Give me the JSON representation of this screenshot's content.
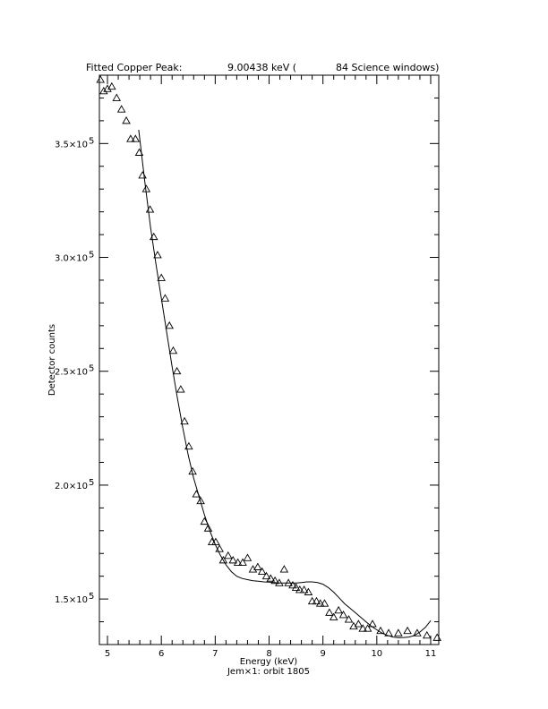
{
  "title": {
    "prefix": "Fitted Copper Peak:",
    "energy": "9.00438 keV (",
    "windows": "84 Science windows)"
  },
  "footer": "Jem×1: orbit 1805",
  "chart_data": {
    "type": "scatter",
    "title": "Fitted Copper Peak:      9.00438 keV (      84 Science windows)",
    "xlabel": "Energy (keV)",
    "ylabel": "Detector counts",
    "xlim": [
      4.85,
      11.15
    ],
    "ylim": [
      130000,
      380000
    ],
    "xticks": [
      5,
      6,
      7,
      8,
      9,
      10,
      11
    ],
    "xtick_labels": [
      "5",
      "6",
      "7",
      "8",
      "9",
      "10",
      "11"
    ],
    "yticks": [
      150000,
      200000,
      250000,
      300000,
      350000
    ],
    "ytick_mantissas": [
      "1.5×10",
      "2.0×10",
      "2.5×10",
      "3.0×10",
      "3.5×10"
    ],
    "ytick_exponent": "5",
    "grid": false,
    "series": [
      {
        "marker": "triangle",
        "x": [
          4.87,
          4.93,
          5.0,
          5.08,
          5.17,
          5.26,
          5.35,
          5.43,
          5.52,
          5.59,
          5.65,
          5.72,
          5.79,
          5.86,
          5.93,
          6.0,
          6.07,
          6.15,
          6.22,
          6.29,
          6.36,
          6.43,
          6.51,
          6.58,
          6.65,
          6.73,
          6.8,
          6.87,
          6.94,
          7.01,
          7.08,
          7.15,
          7.24,
          7.33,
          7.42,
          7.51,
          7.6,
          7.7,
          7.79,
          7.87,
          7.95,
          8.03,
          8.11,
          8.19,
          8.28,
          8.36,
          8.44,
          8.5,
          8.57,
          8.65,
          8.73,
          8.8,
          8.88,
          8.95,
          9.03,
          9.12,
          9.2,
          9.29,
          9.38,
          9.48,
          9.57,
          9.66,
          9.74,
          9.83,
          9.92,
          10.07,
          10.22,
          10.4,
          10.57,
          10.75,
          10.93,
          11.12
        ],
        "y": [
          378000,
          373000,
          374000,
          375000,
          370000,
          365000,
          360000,
          352000,
          352000,
          346000,
          336000,
          330000,
          321000,
          309000,
          301000,
          291000,
          282000,
          270000,
          259000,
          250000,
          242000,
          228000,
          217000,
          206000,
          196000,
          193000,
          184000,
          181000,
          175000,
          175000,
          172000,
          167000,
          169000,
          167000,
          166000,
          166000,
          168000,
          163000,
          164000,
          162000,
          160000,
          159000,
          158000,
          157000,
          163000,
          157000,
          156000,
          155000,
          154000,
          154000,
          153000,
          149000,
          149000,
          148000,
          148000,
          144000,
          142000,
          145000,
          143000,
          141000,
          138000,
          139000,
          137000,
          137000,
          139000,
          136000,
          135000,
          135000,
          136000,
          135000,
          134000,
          133000
        ]
      },
      {
        "type": "line",
        "x": [
          5.58,
          5.7,
          5.8,
          5.9,
          6.0,
          6.1,
          6.2,
          6.3,
          6.4,
          6.5,
          6.6,
          6.7,
          6.8,
          6.9,
          7.0,
          7.1,
          7.2,
          7.3,
          7.4,
          7.5,
          7.6,
          7.7,
          7.8,
          7.9,
          8.0,
          8.1,
          8.2,
          8.3,
          8.4,
          8.5,
          8.6,
          8.7,
          8.8,
          8.9,
          9.0,
          9.1,
          9.2,
          9.3,
          9.4,
          9.5,
          9.6,
          9.7,
          9.8,
          9.9,
          10.0,
          10.1,
          10.2,
          10.3,
          10.4,
          10.5,
          10.6,
          10.7,
          10.8,
          10.9,
          11.0
        ],
        "y": [
          356000,
          332000,
          313000,
          297000,
          282000,
          267000,
          252000,
          238000,
          225000,
          213000,
          203000,
          195000,
          187000,
          180000,
          174000,
          169000,
          165000,
          162000,
          160000,
          159000,
          158500,
          158000,
          157800,
          157500,
          157400,
          157200,
          157000,
          157000,
          157000,
          157000,
          157200,
          157500,
          157500,
          157200,
          156500,
          155000,
          153000,
          150500,
          148000,
          146000,
          144000,
          142000,
          140000,
          138000,
          136500,
          135000,
          134000,
          133300,
          133000,
          133100,
          133300,
          134000,
          135500,
          137500,
          140500
        ]
      }
    ]
  }
}
